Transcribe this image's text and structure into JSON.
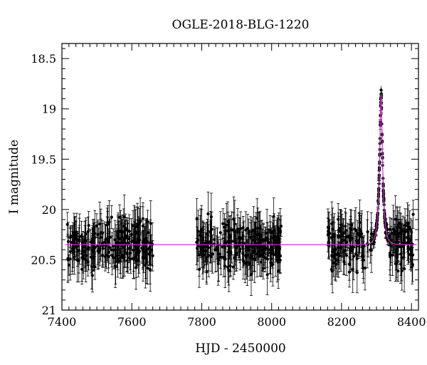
{
  "chart_data": {
    "type": "scatter",
    "title": "OGLE-2018-BLG-1220",
    "xlabel": "HJD - 2450000",
    "ylabel": "I magnitude",
    "xlim": [
      7400,
      8420
    ],
    "ylim": [
      21,
      18.35
    ],
    "y_inverted": true,
    "grid": false,
    "xticks": [
      7400,
      7600,
      7800,
      8000,
      8200,
      8400
    ],
    "xtick_labels": [
      "7400",
      "7600",
      "7800",
      "8000",
      "8200",
      "8400"
    ],
    "yticks": [
      18.5,
      19,
      19.5,
      20,
      20.5,
      21
    ],
    "ytick_labels": [
      "18.5",
      "19",
      "19.5",
      "20",
      "20.5",
      "21"
    ],
    "point_color": "#000000",
    "model_color": "#cc33cc",
    "observing_seasons": [
      {
        "start": 7415,
        "end": 7660
      },
      {
        "start": 7785,
        "end": 8030
      },
      {
        "start": 8160,
        "end": 8405
      }
    ],
    "baseline_magnitude": 20.35,
    "typical_scatter_mag": 0.22,
    "typical_error_mag": 0.2,
    "peak": {
      "t0": 8313,
      "magnitude": 18.85,
      "tE_days": 10
    }
  }
}
